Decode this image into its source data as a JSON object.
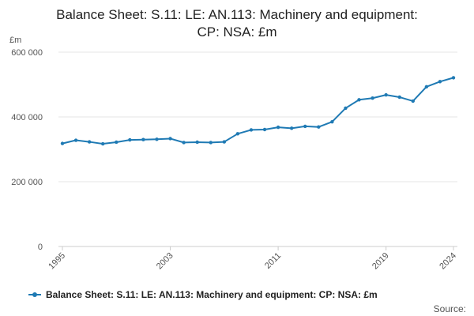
{
  "title_line1": "Balance Sheet: S.11: LE: AN.113: Machinery and equipment:",
  "title_line2": "CP: NSA: £m",
  "y_unit": "£m",
  "legend_label": "Balance Sheet: S.11: LE: AN.113: Machinery and equipment: CP: NSA: £m",
  "source_label": "Source:",
  "colors": {
    "line": "#1f7ab4",
    "grid": "#e6e6e6",
    "axis": "#cccccc"
  },
  "chart_data": {
    "type": "line",
    "title": "Balance Sheet: S.11: LE: AN.113: Machinery and equipment: CP: NSA: £m",
    "ylabel": "£m",
    "ylim": [
      0,
      600000
    ],
    "yticks": [
      0,
      200000,
      400000,
      600000
    ],
    "ytick_labels": [
      "0",
      "200 000",
      "400 000",
      "600 000"
    ],
    "xticks": [
      1995,
      2003,
      2011,
      2019,
      2024
    ],
    "grid": true,
    "legend": "bottom",
    "series": [
      {
        "name": "Balance Sheet: S.11: LE: AN.113: Machinery and equipment: CP: NSA: £m",
        "x": [
          1995,
          1996,
          1997,
          1998,
          1999,
          2000,
          2001,
          2002,
          2003,
          2004,
          2005,
          2006,
          2007,
          2008,
          2009,
          2010,
          2011,
          2012,
          2013,
          2014,
          2015,
          2016,
          2017,
          2018,
          2019,
          2020,
          2021,
          2022,
          2023,
          2024
        ],
        "values": [
          318000,
          328000,
          323000,
          317000,
          322000,
          329000,
          330000,
          331000,
          333000,
          321000,
          322000,
          321000,
          323000,
          348000,
          360000,
          361000,
          368000,
          365000,
          371000,
          369000,
          385000,
          427000,
          453000,
          458000,
          468000,
          461000,
          449000,
          493000,
          509000,
          521000
        ]
      }
    ]
  }
}
